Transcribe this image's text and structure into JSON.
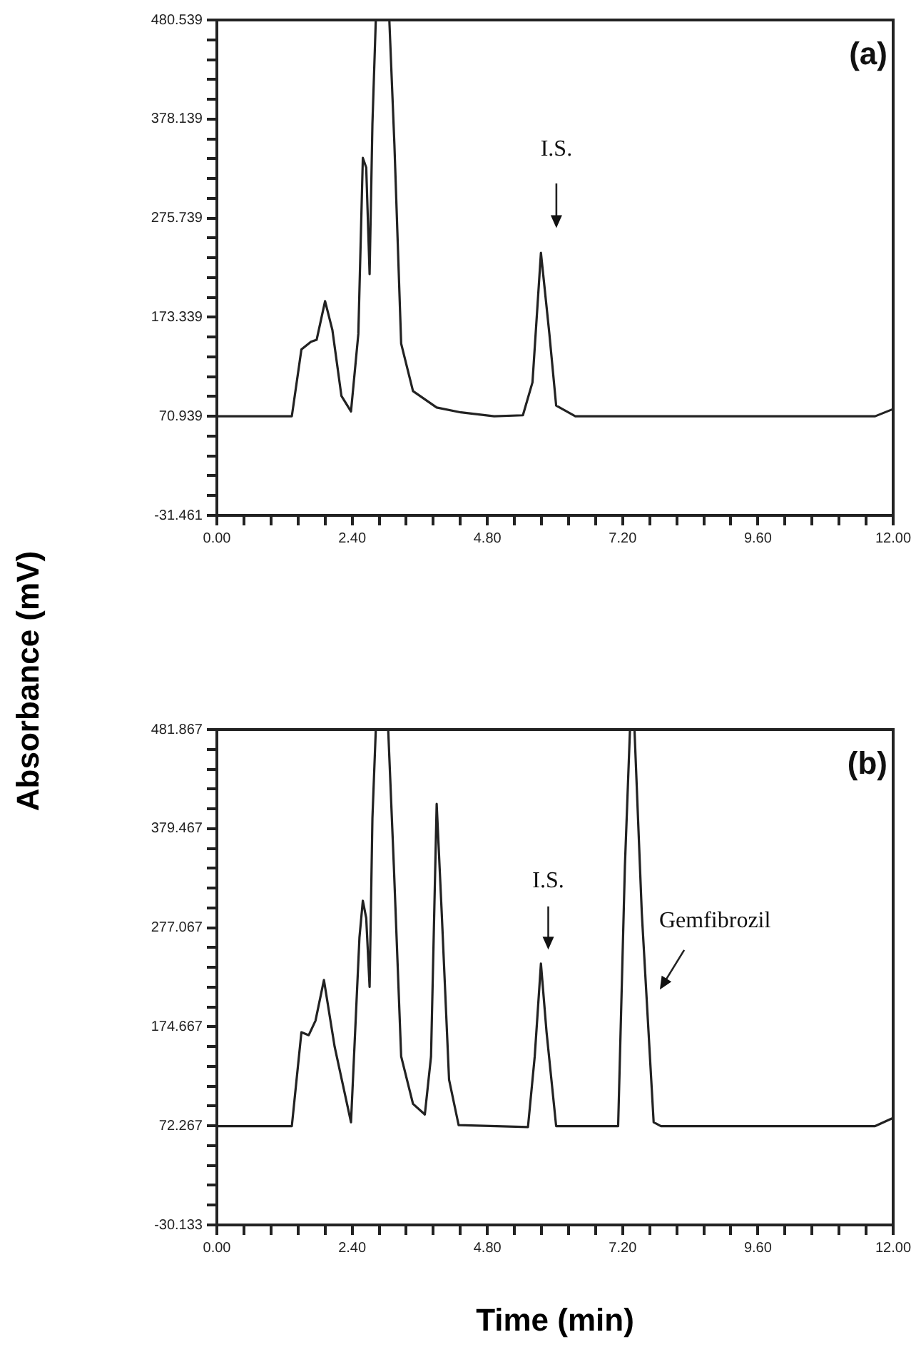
{
  "chart_data": [
    {
      "type": "line",
      "ylabel": "Absorbance (mV)",
      "color": "#222222",
      "marker": "none",
      "line_style": "solid",
      "grid": false,
      "legend": false,
      "x": [
        0,
        1.33,
        1.5,
        1.67,
        1.77,
        1.92,
        2.05,
        2.21,
        2.38,
        2.51,
        2.59,
        2.65,
        2.71,
        2.76,
        2.82,
        3.06,
        3.15,
        3.27,
        3.48,
        3.9,
        4.33,
        4.92,
        5.43,
        5.6,
        5.75,
        5.9,
        6.02,
        6.36,
        11.68,
        11.98
      ],
      "values": [
        71,
        71,
        140,
        148,
        150,
        190,
        160,
        92,
        76,
        156,
        338,
        328,
        218,
        373,
        480.5,
        480.5,
        352,
        146,
        97,
        80,
        75,
        71,
        72,
        106,
        240,
        156,
        82,
        71,
        71,
        78
      ],
      "xlim": [
        0,
        12
      ],
      "ylim": [
        -31.461,
        480.539
      ],
      "xticks": [
        {
          "value": 0,
          "label": "0.00"
        },
        {
          "value": 0.48,
          "label": null
        },
        {
          "value": 0.96,
          "label": null
        },
        {
          "value": 1.44,
          "label": null
        },
        {
          "value": 1.92,
          "label": null
        },
        {
          "value": 2.4,
          "label": "2.40"
        },
        {
          "value": 2.88,
          "label": null
        },
        {
          "value": 3.36,
          "label": null
        },
        {
          "value": 3.84,
          "label": null
        },
        {
          "value": 4.32,
          "label": null
        },
        {
          "value": 4.8,
          "label": "4.80"
        },
        {
          "value": 5.28,
          "label": null
        },
        {
          "value": 5.76,
          "label": null
        },
        {
          "value": 6.24,
          "label": null
        },
        {
          "value": 6.72,
          "label": null
        },
        {
          "value": 7.2,
          "label": "7.20"
        },
        {
          "value": 7.68,
          "label": null
        },
        {
          "value": 8.16,
          "label": null
        },
        {
          "value": 8.64,
          "label": null
        },
        {
          "value": 9.12,
          "label": null
        },
        {
          "value": 9.6,
          "label": "9.60"
        },
        {
          "value": 10.08,
          "label": null
        },
        {
          "value": 10.56,
          "label": null
        },
        {
          "value": 11.04,
          "label": null
        },
        {
          "value": 11.52,
          "label": null
        },
        {
          "value": 12,
          "label": "12.00"
        }
      ],
      "yticks": [
        -31.461,
        {
          "value": -10.981,
          "label": null
        },
        {
          "value": 9.499,
          "label": null
        },
        {
          "value": 29.979,
          "label": null
        },
        {
          "value": 50.459,
          "label": null
        },
        70.939,
        {
          "value": 91.419,
          "label": null
        },
        {
          "value": 111.899,
          "label": null
        },
        {
          "value": 132.379,
          "label": null
        },
        {
          "value": 152.859,
          "label": null
        },
        173.339,
        {
          "value": 193.819,
          "label": null
        },
        {
          "value": 214.299,
          "label": null
        },
        {
          "value": 234.779,
          "label": null
        },
        {
          "value": 255.259,
          "label": null
        },
        275.739,
        {
          "value": 296.219,
          "label": null
        },
        {
          "value": 316.699,
          "label": null
        },
        {
          "value": 337.179,
          "label": null
        },
        {
          "value": 357.659,
          "label": null
        },
        378.139,
        {
          "value": 398.619,
          "label": null
        },
        {
          "value": 419.099,
          "label": null
        },
        {
          "value": 439.579,
          "label": null
        },
        {
          "value": 460.059,
          "label": null
        },
        480.539
      ],
      "annotations": [
        "(a)",
        "I.S."
      ]
    },
    {
      "type": "line",
      "xlabel": "Time (min)",
      "color": "#222222",
      "marker": "none",
      "line_style": "solid",
      "grid": false,
      "legend": false,
      "x": [
        0,
        1.33,
        1.5,
        1.63,
        1.75,
        1.9,
        2.09,
        2.38,
        2.53,
        2.59,
        2.65,
        2.71,
        2.76,
        2.82,
        3.04,
        3.14,
        3.27,
        3.48,
        3.69,
        3.8,
        3.9,
        3.99,
        4.12,
        4.29,
        5.52,
        5.64,
        5.75,
        5.85,
        6.02,
        7.12,
        7.24,
        7.33,
        7.41,
        7.54,
        7.75,
        7.88,
        11.68,
        11.98
      ],
      "values": [
        72,
        72,
        169,
        166,
        181,
        223,
        154,
        76,
        267,
        305,
        287,
        216,
        390,
        481.8,
        481.8,
        341,
        144,
        95,
        84,
        144,
        405,
        292,
        120,
        73,
        71,
        144,
        240,
        169,
        72,
        72,
        341,
        481.8,
        481.8,
        292,
        76,
        72,
        72,
        80
      ],
      "xlim": [
        0,
        12
      ],
      "ylim": [
        -30.133,
        481.867
      ],
      "xticks": [
        {
          "value": 0,
          "label": "0.00"
        },
        {
          "value": 0.48,
          "label": null
        },
        {
          "value": 0.96,
          "label": null
        },
        {
          "value": 1.44,
          "label": null
        },
        {
          "value": 1.92,
          "label": null
        },
        {
          "value": 2.4,
          "label": "2.40"
        },
        {
          "value": 2.88,
          "label": null
        },
        {
          "value": 3.36,
          "label": null
        },
        {
          "value": 3.84,
          "label": null
        },
        {
          "value": 4.32,
          "label": null
        },
        {
          "value": 4.8,
          "label": "4.80"
        },
        {
          "value": 5.28,
          "label": null
        },
        {
          "value": 5.76,
          "label": null
        },
        {
          "value": 6.24,
          "label": null
        },
        {
          "value": 6.72,
          "label": null
        },
        {
          "value": 7.2,
          "label": "7.20"
        },
        {
          "value": 7.68,
          "label": null
        },
        {
          "value": 8.16,
          "label": null
        },
        {
          "value": 8.64,
          "label": null
        },
        {
          "value": 9.12,
          "label": null
        },
        {
          "value": 9.6,
          "label": "9.60"
        },
        {
          "value": 10.08,
          "label": null
        },
        {
          "value": 10.56,
          "label": null
        },
        {
          "value": 11.04,
          "label": null
        },
        {
          "value": 11.52,
          "label": null
        },
        {
          "value": 12,
          "label": "12.00"
        }
      ],
      "yticks": [
        -30.133,
        {
          "value": -9.653,
          "label": null
        },
        {
          "value": 10.827,
          "label": null
        },
        {
          "value": 31.307,
          "label": null
        },
        {
          "value": 51.787,
          "label": null
        },
        72.267,
        {
          "value": 92.747,
          "label": null
        },
        {
          "value": 113.227,
          "label": null
        },
        {
          "value": 133.707,
          "label": null
        },
        {
          "value": 154.187,
          "label": null
        },
        174.667,
        {
          "value": 195.147,
          "label": null
        },
        {
          "value": 215.627,
          "label": null
        },
        {
          "value": 236.107,
          "label": null
        },
        {
          "value": 256.587,
          "label": null
        },
        277.067,
        {
          "value": 297.547,
          "label": null
        },
        {
          "value": 318.027,
          "label": null
        },
        {
          "value": 338.507,
          "label": null
        },
        {
          "value": 358.987,
          "label": null
        },
        379.467,
        {
          "value": 399.947,
          "label": null
        },
        {
          "value": 420.427,
          "label": null
        },
        {
          "value": 440.907,
          "label": null
        },
        {
          "value": 461.387,
          "label": null
        },
        481.867
      ],
      "annotations": [
        "(b)",
        "I.S.",
        "Gemfibrozil"
      ]
    }
  ]
}
